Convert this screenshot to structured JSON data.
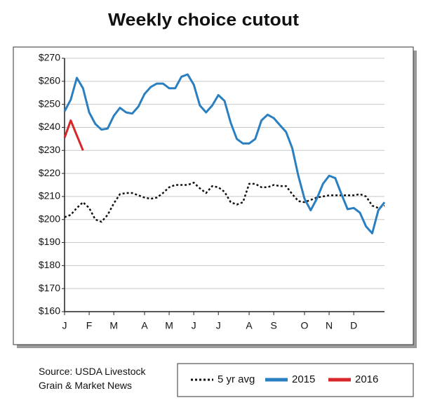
{
  "chart_data": {
    "type": "line",
    "title": "Weekly choice cutout",
    "source": "Source: USDA Livestock\nGrain & Market News",
    "categories": [
      "J",
      null,
      null,
      null,
      "F",
      null,
      null,
      null,
      "M",
      null,
      null,
      null,
      null,
      "A",
      null,
      null,
      null,
      "M",
      null,
      null,
      null,
      "J",
      null,
      null,
      null,
      "J",
      null,
      null,
      null,
      null,
      "A",
      null,
      null,
      null,
      "S",
      null,
      null,
      null,
      null,
      "O",
      null,
      null,
      null,
      "N",
      null,
      null,
      null,
      "D",
      null,
      null,
      null,
      null,
      null
    ],
    "series": [
      {
        "name": "5 yr avg",
        "color": "#111111",
        "style": "dotted",
        "values": [
          201,
          202,
          205,
          207.5,
          205,
          200,
          199,
          202,
          207,
          211,
          211.5,
          211.5,
          210.5,
          209.5,
          209,
          209.5,
          211.5,
          214,
          215,
          215,
          215,
          216,
          213.5,
          211.5,
          214.5,
          214,
          212,
          207.5,
          206.5,
          207.5,
          215.5,
          215.5,
          214,
          214,
          215,
          214.5,
          214.5,
          211,
          208,
          207.5,
          208.5,
          209.5,
          210,
          210.5,
          210.5,
          210.5,
          210.5,
          210.5,
          211,
          210,
          206,
          205,
          206
        ]
      },
      {
        "name": "2015",
        "color": "#2a7fc1",
        "style": "solid",
        "values": [
          247,
          252,
          261.5,
          257,
          246.5,
          241.5,
          239,
          239.5,
          245,
          248.5,
          246.5,
          246,
          249,
          254.5,
          257.5,
          259,
          259,
          257,
          257,
          262,
          263,
          258.5,
          249.5,
          246.5,
          249.5,
          254,
          251.5,
          242,
          235,
          233,
          233,
          235,
          243,
          245.5,
          244,
          241,
          238,
          231,
          219,
          209,
          204,
          209,
          215.5,
          219,
          218,
          211,
          204.5,
          205,
          203,
          197,
          194,
          204,
          207.5
        ]
      },
      {
        "name": "2016",
        "color": "#d9262b",
        "style": "solid",
        "values": [
          235.5,
          243,
          236.5,
          230,
          null,
          null,
          null,
          null,
          null,
          null,
          null,
          null,
          null,
          null,
          null,
          null,
          null,
          null,
          null,
          null,
          null,
          null,
          null,
          null,
          null,
          null,
          null,
          null,
          null,
          null,
          null,
          null,
          null,
          null,
          null,
          null,
          null,
          null,
          null,
          null,
          null,
          null,
          null,
          null,
          null,
          null,
          null,
          null,
          null,
          null,
          null,
          null,
          null
        ]
      }
    ],
    "ylim": [
      160,
      270
    ],
    "yticks": [
      {
        "value": 160,
        "label": "$160"
      },
      {
        "value": 170,
        "label": "$170"
      },
      {
        "value": 180,
        "label": "$180"
      },
      {
        "value": 190,
        "label": "$190"
      },
      {
        "value": 200,
        "label": "$200"
      },
      {
        "value": 210,
        "label": "$210"
      },
      {
        "value": 220,
        "label": "$220"
      },
      {
        "value": 230,
        "label": "$230"
      },
      {
        "value": 240,
        "label": "$240"
      },
      {
        "value": 250,
        "label": "$250"
      },
      {
        "value": 260,
        "label": "$260"
      },
      {
        "value": 270,
        "label": "$270"
      }
    ],
    "grid": true
  }
}
